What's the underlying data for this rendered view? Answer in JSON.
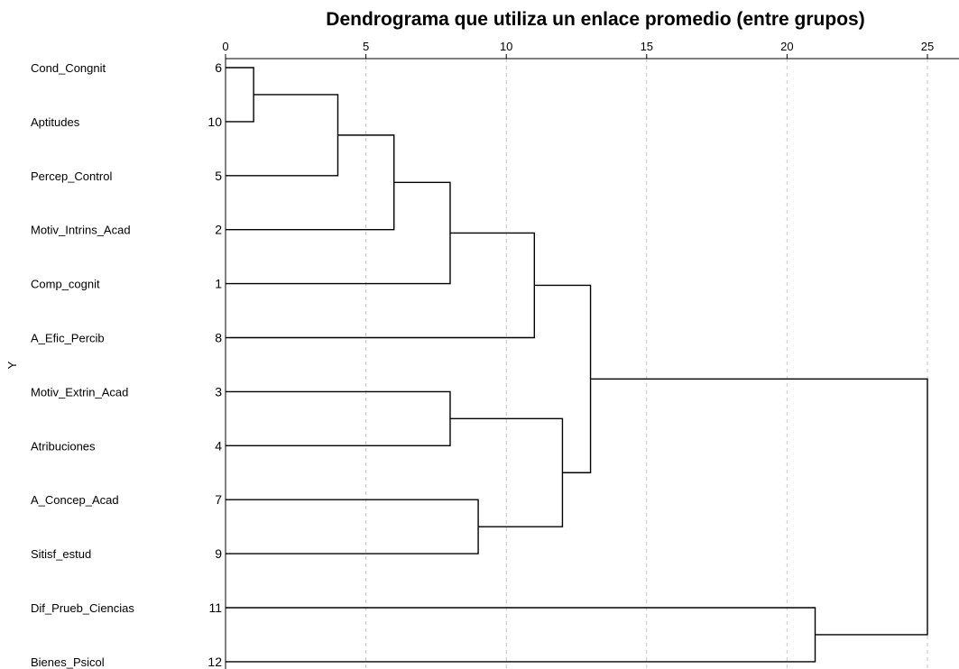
{
  "chart_data": {
    "type": "dendrogram",
    "title": "Dendrograma que utiliza un enlace promedio (entre grupos)",
    "ylabel": "Y",
    "xlim": [
      0,
      25
    ],
    "x_ticks": [
      0,
      5,
      10,
      15,
      20,
      25
    ],
    "grid": "vertical dashed",
    "leaves": [
      {
        "label": "Cond_Congnit",
        "index": "6"
      },
      {
        "label": "Aptitudes",
        "index": "10"
      },
      {
        "label": "Percep_Control",
        "index": "5"
      },
      {
        "label": "Motiv_Intrins_Acad",
        "index": "2"
      },
      {
        "label": "Comp_cognit",
        "index": "1"
      },
      {
        "label": "A_Efic_Percib",
        "index": "8"
      },
      {
        "label": "Motiv_Extrin_Acad",
        "index": "3"
      },
      {
        "label": "Atribuciones",
        "index": "4"
      },
      {
        "label": "A_Concep_Acad",
        "index": "7"
      },
      {
        "label": "Sitisf_estud",
        "index": "9"
      },
      {
        "label": "Dif_Prueb_Ciencias",
        "index": "11"
      },
      {
        "label": "Bienes_Psicol",
        "index": "12"
      }
    ],
    "merges": [
      {
        "a": "L0",
        "b": "L1",
        "distance": 1
      },
      {
        "a": "M0",
        "b": "L2",
        "distance": 4
      },
      {
        "a": "M1",
        "b": "L3",
        "distance": 6
      },
      {
        "a": "M2",
        "b": "L4",
        "distance": 8
      },
      {
        "a": "M3",
        "b": "L5",
        "distance": 11
      },
      {
        "a": "L6",
        "b": "L7",
        "distance": 8
      },
      {
        "a": "L8",
        "b": "L9",
        "distance": 9
      },
      {
        "a": "M5",
        "b": "M6",
        "distance": 12
      },
      {
        "a": "M4",
        "b": "M7",
        "distance": 13
      },
      {
        "a": "L10",
        "b": "L11",
        "distance": 21
      },
      {
        "a": "M8",
        "b": "M9",
        "distance": 25
      }
    ]
  }
}
